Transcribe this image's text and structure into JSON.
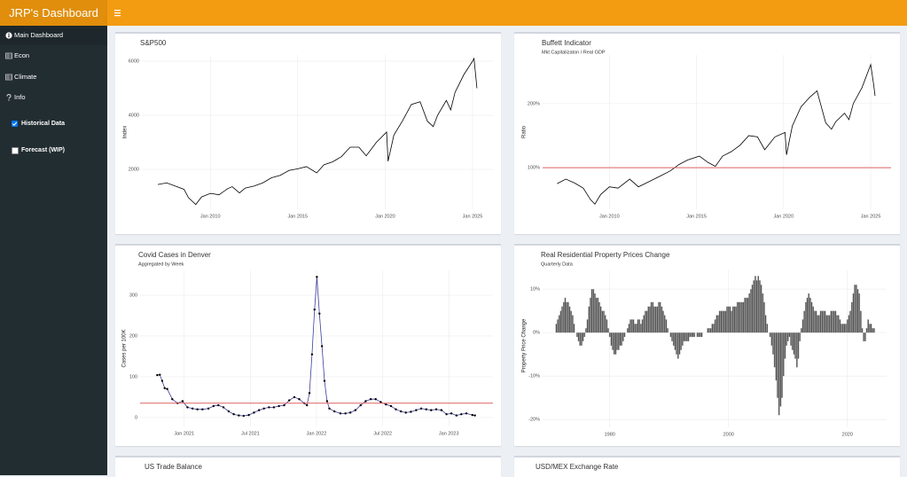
{
  "header": {
    "title": "JRP's Dashboard"
  },
  "sidebar": {
    "menu": [
      "Main Dashboard",
      "Econ",
      "Climate",
      "Info"
    ],
    "checkboxes": [
      {
        "label": "Historical Data",
        "checked": true
      },
      {
        "label": "Forecast (WIP)",
        "checked": false
      }
    ]
  },
  "chart_data": [
    {
      "type": "line",
      "title": "S&P500",
      "y_label": "Index",
      "color": "#000000",
      "grid": true,
      "x": [
        "2007-01",
        "2007-07",
        "2008-01",
        "2008-07",
        "2008-10",
        "2009-03",
        "2009-07",
        "2010-01",
        "2010-07",
        "2011-01",
        "2011-04",
        "2011-09",
        "2012-01",
        "2012-07",
        "2013-01",
        "2013-07",
        "2014-01",
        "2014-07",
        "2015-01",
        "2015-07",
        "2016-02",
        "2016-07",
        "2017-01",
        "2017-07",
        "2018-01",
        "2018-07",
        "2018-12",
        "2019-07",
        "2020-02",
        "2020-03",
        "2020-07",
        "2021-01",
        "2021-07",
        "2022-01",
        "2022-06",
        "2022-10",
        "2023-01",
        "2023-07",
        "2023-10",
        "2024-01",
        "2024-07",
        "2025-01",
        "2025-02",
        "2025-04"
      ],
      "values": [
        1440,
        1500,
        1380,
        1260,
        950,
        700,
        980,
        1110,
        1060,
        1290,
        1360,
        1130,
        1310,
        1380,
        1500,
        1690,
        1780,
        1960,
        2020,
        2100,
        1870,
        2170,
        2280,
        2470,
        2820,
        2820,
        2500,
        3000,
        3380,
        2300,
        3270,
        3800,
        4400,
        4500,
        3780,
        3580,
        4000,
        4550,
        4200,
        4850,
        5500,
        6000,
        6100,
        5000
      ],
      "xlim": [
        "2006-02",
        "2026-03"
      ],
      "ylim": [
        525,
        6230
      ],
      "xticks": [
        {
          "value": "2010-01",
          "label": "Jan 2010"
        },
        {
          "value": "2015-01",
          "label": "Jan 2015"
        },
        {
          "value": "2020-01",
          "label": "Jan 2020"
        },
        {
          "value": "2025-01",
          "label": "Jan 2025"
        }
      ],
      "yticks": [
        2000,
        4000,
        6000
      ]
    },
    {
      "type": "line",
      "title": "Buffett Indicator",
      "subtitle": "Mkt Capitalizaton / Real GDP",
      "y_label": "Ratio",
      "color": "#000000",
      "grid": true,
      "hline": 100,
      "hline_color": "#e06060",
      "x": [
        "2007-01",
        "2007-07",
        "2008-01",
        "2008-07",
        "2008-12",
        "2009-03",
        "2009-07",
        "2010-01",
        "2010-07",
        "2011-03",
        "2011-09",
        "2012-06",
        "2013-01",
        "2013-07",
        "2014-01",
        "2014-07",
        "2015-03",
        "2015-09",
        "2016-02",
        "2016-07",
        "2017-01",
        "2017-07",
        "2018-01",
        "2018-07",
        "2018-12",
        "2019-07",
        "2020-02",
        "2020-03",
        "2020-07",
        "2021-01",
        "2021-07",
        "2021-12",
        "2022-06",
        "2022-10",
        "2023-01",
        "2023-07",
        "2023-10",
        "2024-01",
        "2024-07",
        "2025-01",
        "2025-03",
        "2025-04"
      ],
      "values": [
        75,
        82,
        76,
        68,
        50,
        43,
        58,
        70,
        68,
        82,
        70,
        80,
        88,
        95,
        105,
        112,
        118,
        108,
        102,
        118,
        125,
        135,
        150,
        148,
        128,
        148,
        155,
        120,
        165,
        195,
        210,
        220,
        170,
        160,
        172,
        185,
        175,
        200,
        225,
        261,
        230,
        212
      ],
      "xlim": [
        "2006-03",
        "2026-03"
      ],
      "ylim": [
        35,
        276
      ],
      "xticks": [
        {
          "value": "2010-01",
          "label": "Jan 2010"
        },
        {
          "value": "2015-01",
          "label": "Jan 2015"
        },
        {
          "value": "2020-01",
          "label": "Jan 2020"
        },
        {
          "value": "2025-01",
          "label": "Jan 2025"
        }
      ],
      "yticks": [
        {
          "value": 100,
          "label": "100%"
        },
        {
          "value": 200,
          "label": "200%"
        }
      ]
    },
    {
      "type": "line",
      "title": "Covid Cases in Denver",
      "subtitle": "Aggregated by Week",
      "y_label": "Cases per 100K",
      "color": "#3c3c9c",
      "markers": true,
      "marker_color": "#000000",
      "grid": true,
      "hline": 35,
      "hline_color": "#e06060",
      "x": [
        "2020-10-18",
        "2020-10-25",
        "2020-11-01",
        "2020-11-08",
        "2020-11-15",
        "2020-11-29",
        "2020-12-13",
        "2020-12-27",
        "2021-01-10",
        "2021-01-24",
        "2021-02-07",
        "2021-02-21",
        "2021-03-07",
        "2021-03-21",
        "2021-04-04",
        "2021-04-18",
        "2021-05-02",
        "2021-05-16",
        "2021-05-30",
        "2021-06-13",
        "2021-06-27",
        "2021-07-11",
        "2021-07-25",
        "2021-08-08",
        "2021-08-22",
        "2021-09-05",
        "2021-09-19",
        "2021-10-03",
        "2021-10-17",
        "2021-10-31",
        "2021-11-14",
        "2021-11-28",
        "2021-12-05",
        "2021-12-12",
        "2021-12-19",
        "2021-12-26",
        "2022-01-02",
        "2022-01-09",
        "2022-01-16",
        "2022-01-23",
        "2022-01-30",
        "2022-02-06",
        "2022-02-20",
        "2022-03-06",
        "2022-03-20",
        "2022-04-03",
        "2022-04-17",
        "2022-05-01",
        "2022-05-15",
        "2022-05-29",
        "2022-06-12",
        "2022-06-26",
        "2022-07-10",
        "2022-07-24",
        "2022-08-07",
        "2022-08-21",
        "2022-09-04",
        "2022-09-18",
        "2022-10-02",
        "2022-10-16",
        "2022-10-30",
        "2022-11-13",
        "2022-11-27",
        "2022-12-11",
        "2022-12-25",
        "2023-01-08",
        "2023-01-22",
        "2023-02-05",
        "2023-02-19",
        "2023-03-05",
        "2023-03-12"
      ],
      "values": [
        104,
        105,
        90,
        72,
        70,
        45,
        35,
        40,
        25,
        22,
        20,
        20,
        22,
        28,
        30,
        25,
        15,
        8,
        5,
        4,
        6,
        12,
        18,
        22,
        25,
        25,
        28,
        30,
        42,
        50,
        45,
        35,
        30,
        60,
        155,
        265,
        345,
        255,
        175,
        90,
        40,
        22,
        15,
        10,
        10,
        12,
        18,
        30,
        40,
        45,
        45,
        38,
        32,
        28,
        20,
        15,
        12,
        14,
        18,
        22,
        20,
        18,
        20,
        18,
        8,
        10,
        5,
        8,
        10,
        6,
        5
      ],
      "xlim": [
        "2020-09",
        "2023-05"
      ],
      "ylim": [
        -22,
        361
      ],
      "xticks": [
        {
          "value": "2021-01",
          "label": "Jan 2021"
        },
        {
          "value": "2021-07",
          "label": "Jul 2021"
        },
        {
          "value": "2022-01",
          "label": "Jan 2022"
        },
        {
          "value": "2022-07",
          "label": "Jul 2022"
        },
        {
          "value": "2023-01",
          "label": "Jan 2023"
        }
      ],
      "yticks": [
        0,
        100,
        200,
        300
      ]
    },
    {
      "type": "bar",
      "title": "Real Residential Property Prices Change",
      "subtitle": "Quarterly Data",
      "y_label": "Property Price Change",
      "color": "#555555",
      "grid": true,
      "x": [
        1971,
        1971.25,
        1971.5,
        1971.75,
        1972,
        1972.25,
        1972.5,
        1972.75,
        1973,
        1973.25,
        1973.5,
        1973.75,
        1974,
        1974.25,
        1974.5,
        1974.75,
        1975,
        1975.25,
        1975.5,
        1975.75,
        1976,
        1976.25,
        1976.5,
        1976.75,
        1977,
        1977.25,
        1977.5,
        1977.75,
        1978,
        1978.25,
        1978.5,
        1978.75,
        1979,
        1979.25,
        1979.5,
        1979.75,
        1980,
        1980.25,
        1980.5,
        1980.75,
        1981,
        1981.25,
        1981.5,
        1981.75,
        1982,
        1982.25,
        1982.5,
        1982.75,
        1983,
        1983.25,
        1983.5,
        1983.75,
        1984,
        1984.25,
        1984.5,
        1984.75,
        1985,
        1985.25,
        1985.5,
        1985.75,
        1986,
        1986.25,
        1986.5,
        1986.75,
        1987,
        1987.25,
        1987.5,
        1987.75,
        1988,
        1988.25,
        1988.5,
        1988.75,
        1989,
        1989.25,
        1989.5,
        1989.75,
        1990,
        1990.25,
        1990.5,
        1990.75,
        1991,
        1991.25,
        1991.5,
        1991.75,
        1992,
        1992.25,
        1992.5,
        1992.75,
        1993,
        1993.25,
        1993.5,
        1993.75,
        1994,
        1994.25,
        1994.5,
        1994.75,
        1995,
        1995.25,
        1995.5,
        1995.75,
        1996,
        1996.25,
        1996.5,
        1996.75,
        1997,
        1997.25,
        1997.5,
        1997.75,
        1998,
        1998.25,
        1998.5,
        1998.75,
        1999,
        1999.25,
        1999.5,
        1999.75,
        2000,
        2000.25,
        2000.5,
        2000.75,
        2001,
        2001.25,
        2001.5,
        2001.75,
        2002,
        2002.25,
        2002.5,
        2002.75,
        2003,
        2003.25,
        2003.5,
        2003.75,
        2004,
        2004.25,
        2004.5,
        2004.75,
        2005,
        2005.25,
        2005.5,
        2005.75,
        2006,
        2006.25,
        2006.5,
        2006.75,
        2007,
        2007.25,
        2007.5,
        2007.75,
        2008,
        2008.25,
        2008.5,
        2008.75,
        2009,
        2009.25,
        2009.5,
        2009.75,
        2010,
        2010.25,
        2010.5,
        2010.75,
        2011,
        2011.25,
        2011.5,
        2011.75,
        2012,
        2012.25,
        2012.5,
        2012.75,
        2013,
        2013.25,
        2013.5,
        2013.75,
        2014,
        2014.25,
        2014.5,
        2014.75,
        2015,
        2015.25,
        2015.5,
        2015.75,
        2016,
        2016.25,
        2016.5,
        2016.75,
        2017,
        2017.25,
        2017.5,
        2017.75,
        2018,
        2018.25,
        2018.5,
        2018.75,
        2019,
        2019.25,
        2019.5,
        2019.75,
        2020,
        2020.25,
        2020.5,
        2020.75,
        2021,
        2021.25,
        2021.5,
        2021.75,
        2022,
        2022.25,
        2022.5,
        2022.75,
        2023,
        2023.25,
        2023.5,
        2023.75,
        2024,
        2024.25,
        2024.5
      ],
      "values": [
        2,
        3,
        4,
        5,
        6,
        7,
        8,
        7,
        7,
        6,
        5,
        4,
        2,
        0,
        -1,
        -2,
        -3,
        -3,
        -2,
        -1,
        1,
        3,
        6,
        8,
        10,
        10,
        9,
        8,
        8,
        7,
        6,
        5,
        5,
        4,
        3,
        1,
        -1,
        -3,
        -4,
        -5,
        -5,
        -4,
        -4,
        -3,
        -3,
        -2,
        -1,
        0,
        1,
        2,
        3,
        3,
        3,
        2,
        2,
        3,
        3,
        2,
        3,
        4,
        5,
        5,
        6,
        6,
        7,
        7,
        6,
        6,
        6,
        7,
        7,
        6,
        5,
        4,
        3,
        1,
        0,
        -1,
        -2,
        -3,
        -4,
        -5,
        -6,
        -5,
        -4,
        -3,
        -2,
        -2,
        -2,
        -2,
        -1,
        -1,
        -1,
        -1,
        0,
        -1,
        -1,
        -1,
        -1,
        0,
        0,
        0,
        1,
        1,
        1,
        2,
        2,
        3,
        4,
        4,
        5,
        5,
        5,
        5,
        5,
        6,
        6,
        6,
        5,
        6,
        6,
        6,
        7,
        7,
        7,
        7,
        7,
        8,
        8,
        8,
        9,
        10,
        11,
        12,
        13,
        12,
        13,
        12,
        11,
        9,
        7,
        4,
        2,
        0,
        -1,
        -3,
        -5,
        -8,
        -11,
        -15,
        -19,
        -17,
        -15,
        -10,
        -6,
        -3,
        -2,
        -1,
        -3,
        -4,
        -5,
        -6,
        -8,
        -6,
        -2,
        1,
        3,
        5,
        7,
        8,
        9,
        8,
        7,
        6,
        5,
        5,
        4,
        4,
        5,
        5,
        5,
        5,
        4,
        4,
        4,
        5,
        5,
        5,
        5,
        4,
        4,
        3,
        2,
        2,
        2,
        2,
        3,
        4,
        5,
        7,
        9,
        11,
        11,
        10,
        9,
        5,
        1,
        -2,
        -2,
        1,
        3,
        2,
        2,
        1,
        1
      ],
      "xlim": [
        1968.7,
        2026.6
      ],
      "ylim": [
        -21.8,
        14.3
      ],
      "xticks": [
        1980,
        2000,
        2020
      ],
      "yticks": [
        {
          "value": 10,
          "label": "10%"
        },
        {
          "value": 0,
          "label": "0%"
        },
        {
          "value": -10,
          "label": "-10%"
        },
        {
          "value": -20,
          "label": "-20%"
        }
      ]
    }
  ],
  "more_panels": [
    {
      "title": "US Trade Balance"
    },
    {
      "title": "USD/MEX Exchange Rate"
    }
  ]
}
